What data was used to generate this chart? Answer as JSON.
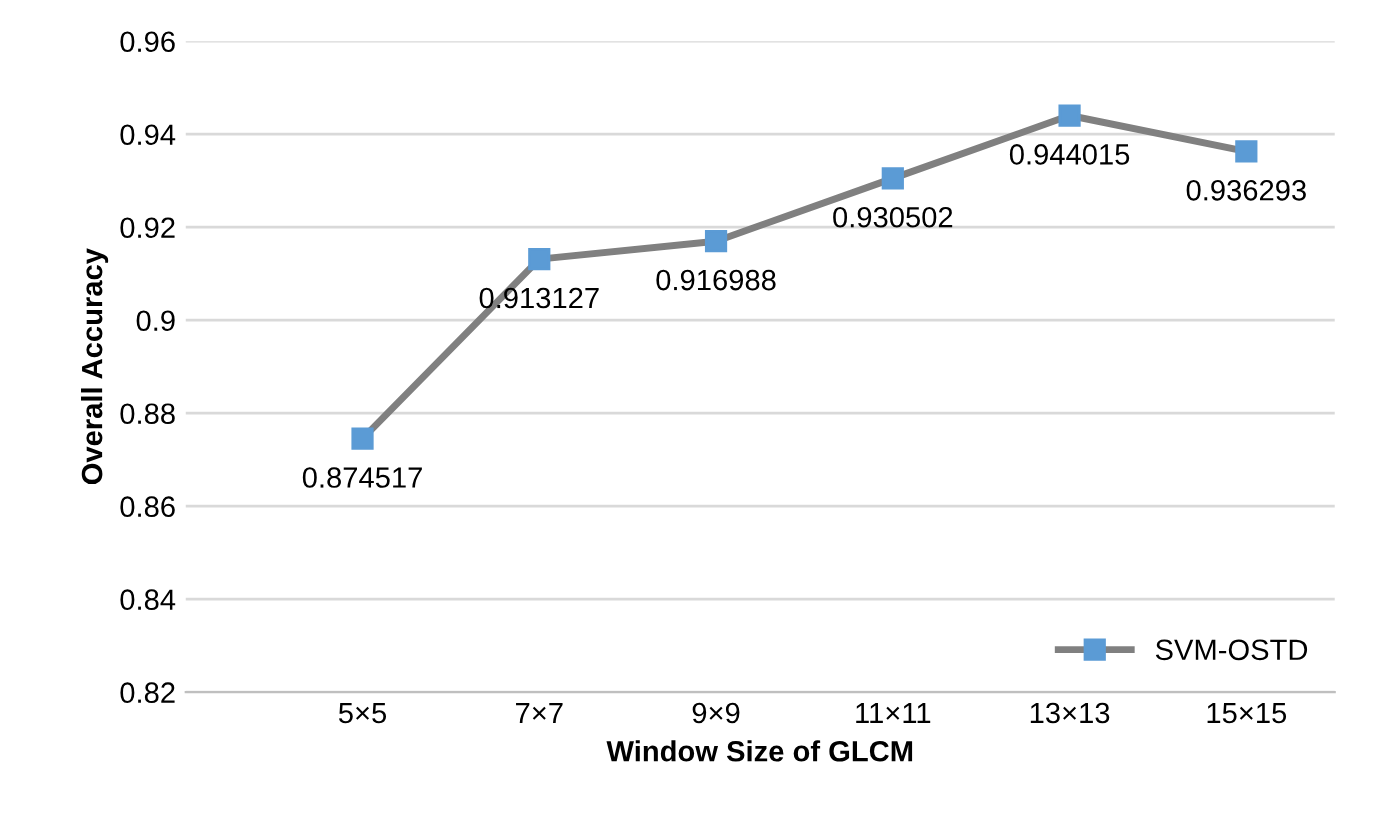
{
  "chart_data": {
    "type": "line",
    "xlabel": "Window Size of GLCM",
    "ylabel": "Overall Accuracy",
    "categories": [
      "5×5",
      "7×7",
      "9×9",
      "11×11",
      "13×13",
      "15×15"
    ],
    "series": [
      {
        "name": "SVM-OSTD",
        "color": "#5b9bd5",
        "values": [
          0.874517,
          0.913127,
          0.916988,
          0.930502,
          0.944015,
          0.936293
        ]
      }
    ],
    "ylim": [
      0.82,
      0.96
    ],
    "yticks": [
      0.82,
      0.84,
      0.86,
      0.88,
      0.9,
      0.92,
      0.94,
      0.96
    ],
    "grid": "y",
    "legend": "bottom right",
    "marker": "square",
    "line_style": "solid",
    "data_labels": true
  }
}
